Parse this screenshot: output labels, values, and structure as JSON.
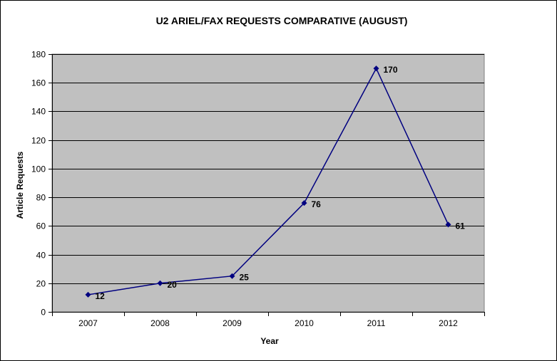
{
  "chart_data": {
    "type": "line",
    "title": "U2 ARIEL/FAX REQUESTS COMPARATIVE (AUGUST)",
    "xlabel": "Year",
    "ylabel": "Article Requests",
    "categories": [
      "2007",
      "2008",
      "2009",
      "2010",
      "2011",
      "2012"
    ],
    "series": [
      {
        "values": [
          12,
          20,
          25,
          76,
          170,
          61
        ]
      }
    ],
    "ylim": [
      0,
      180
    ],
    "ytick_step": 20,
    "grid": true,
    "legend": "none",
    "data_labels": true,
    "colors": {
      "plot_background": "#c0c0c0",
      "line": "#000080",
      "marker": "#000080",
      "gridline": "#000000"
    }
  }
}
